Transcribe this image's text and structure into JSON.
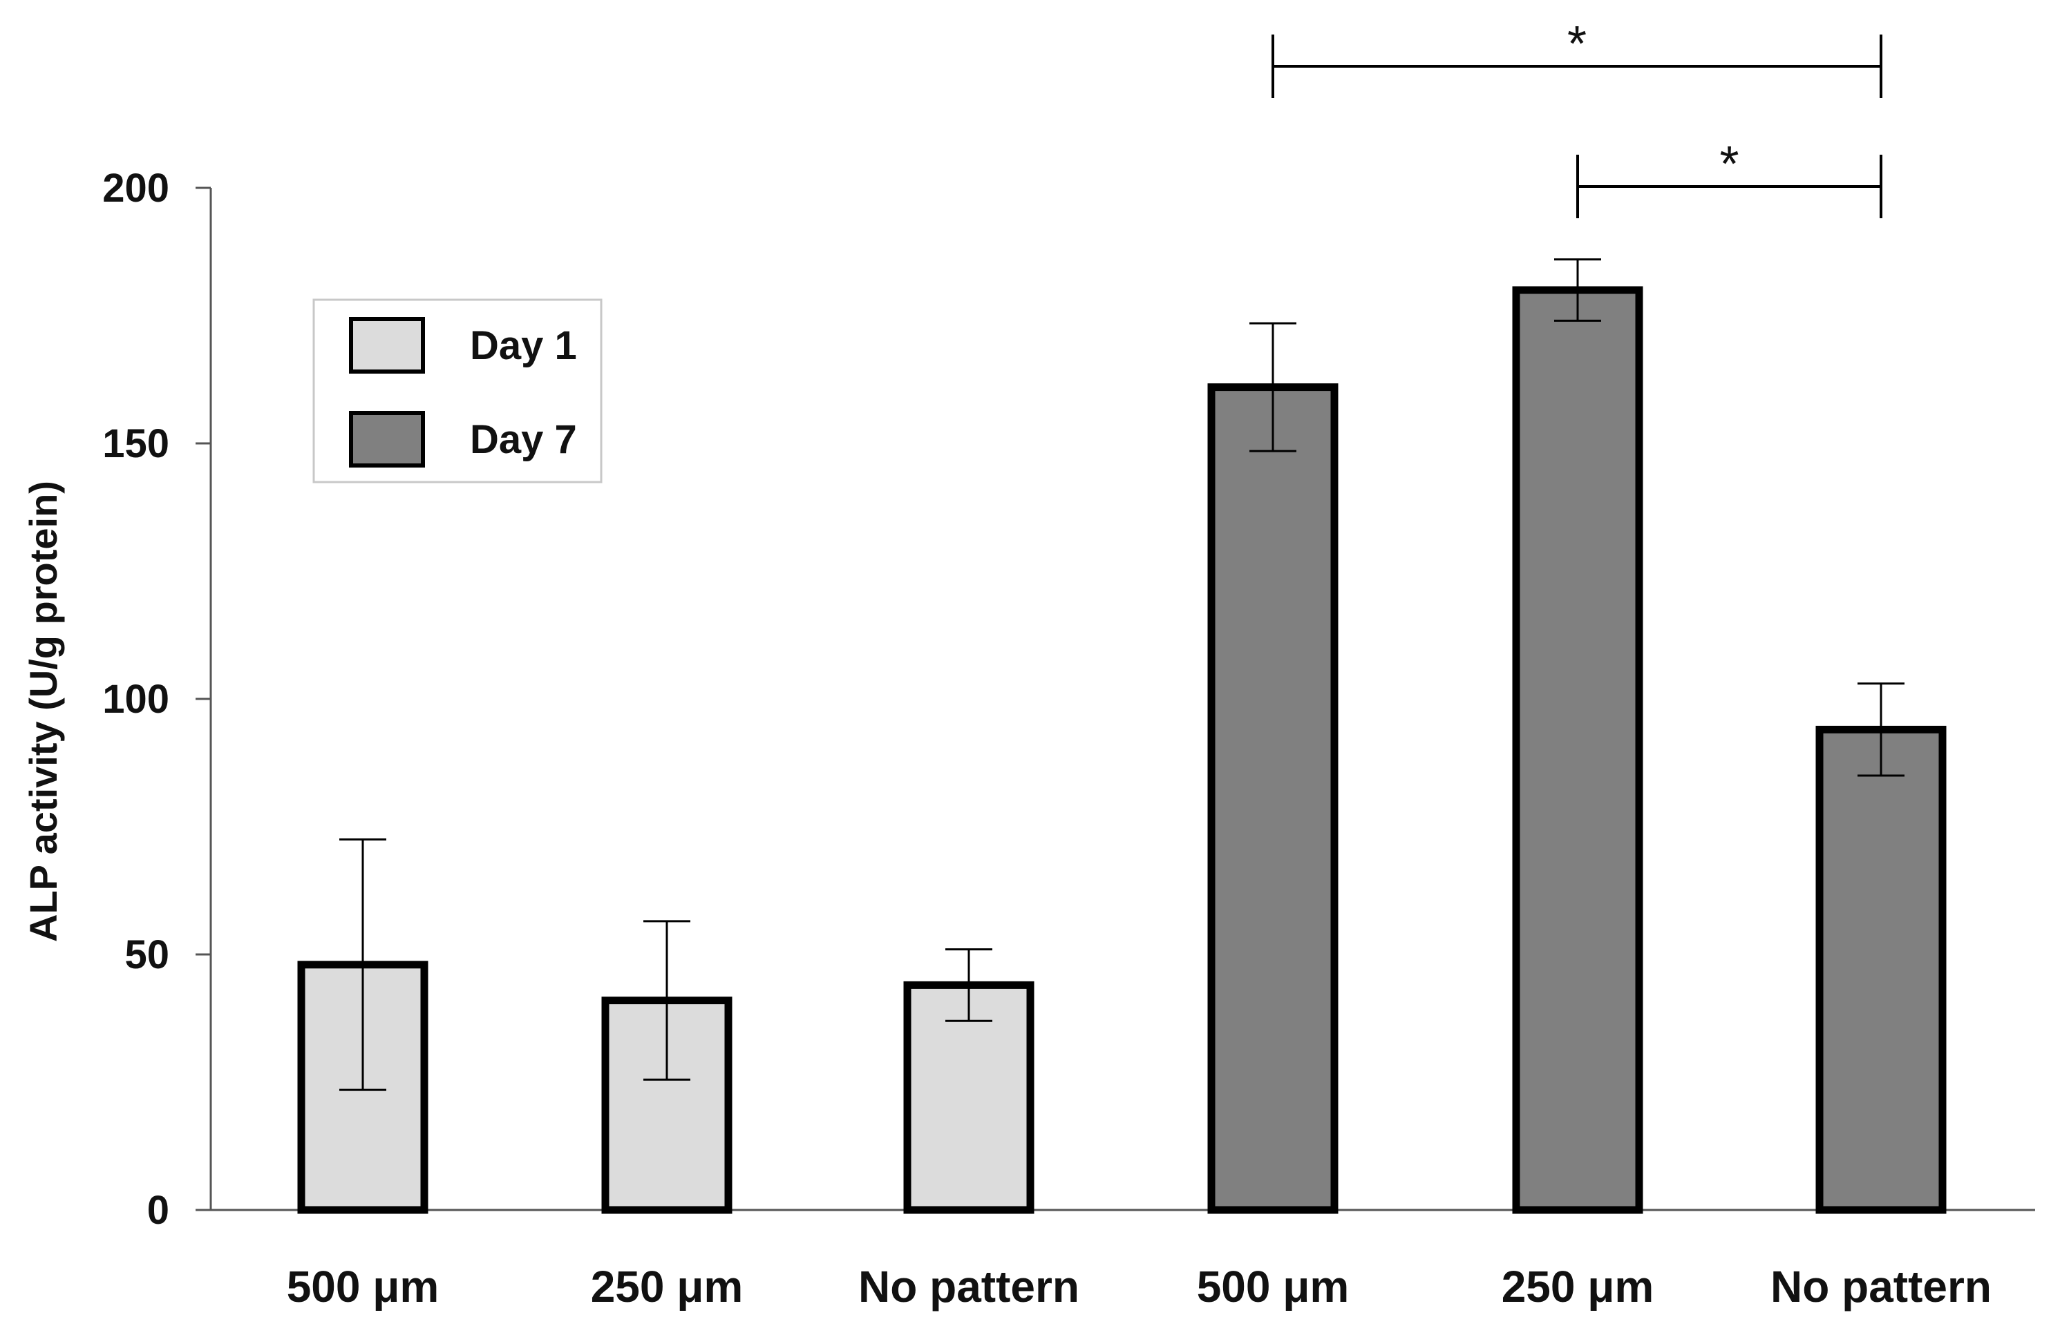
{
  "chart_data": {
    "type": "bar",
    "title": "",
    "xlabel": "",
    "ylabel": "ALP activity (U/g protein)",
    "ylim": [
      0,
      200
    ],
    "yticks": [
      "0",
      "50",
      "100",
      "150",
      "200"
    ],
    "grid": false,
    "legend_position": "top-left",
    "categories": [
      "500 μm",
      "250 μm",
      "No pattern",
      "500 μm",
      "250 μm",
      "No pattern"
    ],
    "series": [
      {
        "name": "Day 1",
        "color": "#dcdcdc",
        "values": [
          48,
          41,
          44,
          null,
          null,
          null
        ],
        "errors": [
          24.5,
          15.5,
          7,
          null,
          null,
          null
        ]
      },
      {
        "name": "Day 7",
        "color": "#808080",
        "values": [
          null,
          null,
          null,
          161,
          180,
          94
        ],
        "errors": [
          null,
          null,
          null,
          12.5,
          6,
          9
        ]
      }
    ],
    "significance": [
      {
        "from": 3,
        "to": 5,
        "label": "*"
      },
      {
        "from": 4,
        "to": 5,
        "label": "*"
      }
    ]
  }
}
